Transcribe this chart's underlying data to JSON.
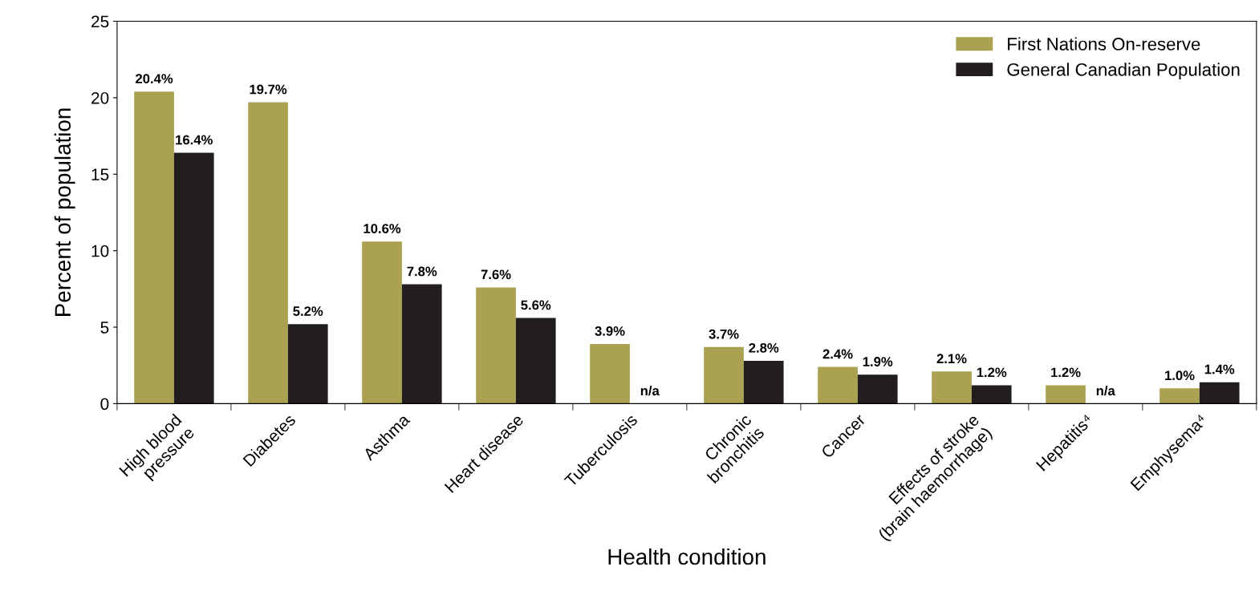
{
  "chart_data": {
    "type": "bar",
    "xlabel": "Health condition",
    "ylabel": "Percent of population",
    "categories": [
      "High blood\npressure",
      "Diabetes",
      "Asthma",
      "Heart disease",
      "Tuberculosis",
      "Chronic\nbronchitis",
      "Cancer",
      "Effects of stroke\n(brain haemorrhage)",
      "Hepatitis⁴",
      "Emphysema⁴"
    ],
    "series": [
      {
        "name": "First Nations On-reserve",
        "color": "#aba251",
        "values": [
          20.4,
          19.7,
          10.6,
          7.6,
          3.9,
          3.7,
          2.4,
          2.1,
          1.2,
          1.0
        ],
        "value_labels": [
          "20.4%",
          "19.7%",
          "10.6%",
          "7.6%",
          "3.9%",
          "3.7%",
          "2.4%",
          "2.1%",
          "1.2%",
          "1.0%"
        ]
      },
      {
        "name": "General Canadian Population",
        "color": "#221e1f",
        "values": [
          16.4,
          5.2,
          7.8,
          5.6,
          null,
          2.8,
          1.9,
          1.2,
          null,
          1.4
        ],
        "value_labels": [
          "16.4%",
          "5.2%",
          "7.8%",
          "5.6%",
          "n/a",
          "2.8%",
          "1.9%",
          "1.2%",
          "n/a",
          "1.4%"
        ]
      }
    ],
    "ylim": [
      0,
      25
    ],
    "yticks": [
      0,
      5,
      10,
      15,
      20,
      25
    ],
    "legend": "top right",
    "grid": false
  }
}
